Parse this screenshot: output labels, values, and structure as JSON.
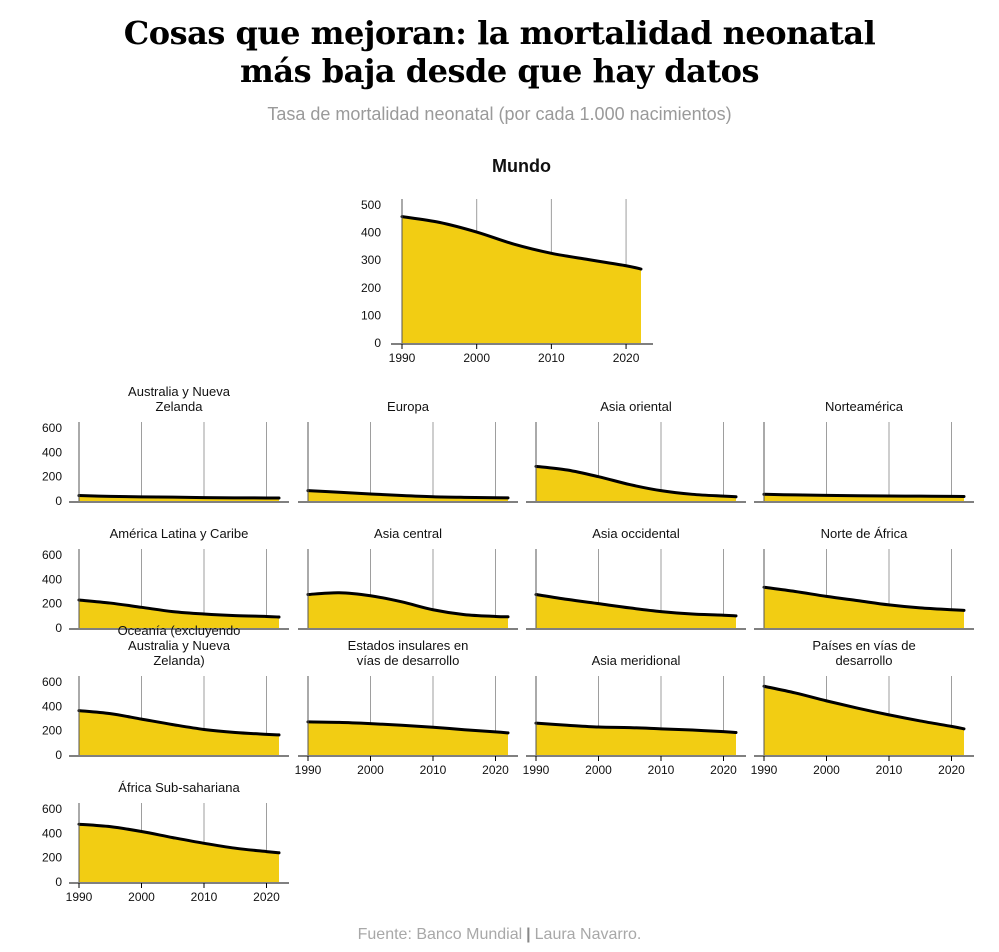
{
  "title_line1": "Cosas que mejoran: la mortalidad neonatal",
  "title_line2": "más baja desde que hay datos",
  "subtitle": "Tasa de mortalidad neonatal (por cada 1.000 nacimientos)",
  "footer": {
    "source": "Fuente: Banco Mundial",
    "author": "Laura Navarro."
  },
  "colors": {
    "fill": "#F2CD13",
    "line": "#000000",
    "grid": "#9e9e9e"
  },
  "chart_data": [
    {
      "type": "area",
      "title": "Mundo",
      "ylim": [
        0,
        500
      ],
      "yticks": [
        "0",
        "100",
        "200",
        "300",
        "400",
        "500"
      ],
      "xticks": [
        "1990",
        "2000",
        "2010",
        "2020"
      ],
      "x": [
        1990,
        1995,
        2000,
        2005,
        2010,
        2015,
        2020,
        2022
      ],
      "values": [
        458,
        437,
        402,
        358,
        325,
        302,
        280,
        268
      ]
    },
    {
      "type": "area",
      "title": "Australia y Nueva Zelanda",
      "ylim": [
        0,
        600
      ],
      "yticks": [
        "0",
        "200",
        "400",
        "600"
      ],
      "xticks": [],
      "x": [
        1990,
        1995,
        2000,
        2005,
        2010,
        2015,
        2020,
        2022
      ],
      "values": [
        45,
        38,
        34,
        32,
        28,
        26,
        25,
        25
      ]
    },
    {
      "type": "area",
      "title": "Europa",
      "ylim": [
        0,
        600
      ],
      "yticks": [],
      "xticks": [],
      "x": [
        1990,
        1995,
        2000,
        2005,
        2010,
        2015,
        2020,
        2022
      ],
      "values": [
        85,
        72,
        58,
        45,
        35,
        30,
        27,
        26
      ]
    },
    {
      "type": "area",
      "title": "Asia oriental",
      "ylim": [
        0,
        600
      ],
      "yticks": [],
      "xticks": [],
      "x": [
        1990,
        1995,
        2000,
        2005,
        2010,
        2015,
        2020,
        2022
      ],
      "values": [
        285,
        255,
        200,
        135,
        85,
        55,
        40,
        35
      ]
    },
    {
      "type": "area",
      "title": "Norteamérica",
      "ylim": [
        0,
        600
      ],
      "yticks": [],
      "xticks": [],
      "x": [
        1990,
        1995,
        2000,
        2005,
        2010,
        2015,
        2020,
        2022
      ],
      "values": [
        55,
        50,
        46,
        43,
        41,
        40,
        38,
        37
      ]
    },
    {
      "type": "area",
      "title": "América Latina y Caribe",
      "ylim": [
        0,
        600
      ],
      "yticks": [
        "0",
        "200",
        "400",
        "600"
      ],
      "xticks": [],
      "x": [
        1990,
        1995,
        2000,
        2005,
        2010,
        2015,
        2020,
        2022
      ],
      "values": [
        230,
        205,
        170,
        135,
        115,
        102,
        95,
        90
      ]
    },
    {
      "type": "area",
      "title": "Asia central",
      "ylim": [
        0,
        600
      ],
      "yticks": [],
      "xticks": [],
      "x": [
        1990,
        1995,
        2000,
        2005,
        2010,
        2015,
        2020,
        2022
      ],
      "values": [
        275,
        290,
        265,
        215,
        150,
        110,
        95,
        92
      ]
    },
    {
      "type": "area",
      "title": "Asia occidental",
      "ylim": [
        0,
        600
      ],
      "yticks": [],
      "xticks": [],
      "x": [
        1990,
        1995,
        2000,
        2005,
        2010,
        2015,
        2020,
        2022
      ],
      "values": [
        275,
        235,
        200,
        165,
        135,
        115,
        105,
        100
      ]
    },
    {
      "type": "area",
      "title": "Norte de África",
      "ylim": [
        0,
        600
      ],
      "yticks": [],
      "xticks": [],
      "x": [
        1990,
        1995,
        2000,
        2005,
        2010,
        2015,
        2020,
        2022
      ],
      "values": [
        335,
        300,
        260,
        225,
        190,
        165,
        150,
        145
      ]
    },
    {
      "type": "area",
      "title": "Oceanía (excluyendo Australia y Nueva Zelanda)",
      "ylim": [
        0,
        600
      ],
      "yticks": [
        "0",
        "200",
        "400",
        "600"
      ],
      "xticks": [],
      "x": [
        1990,
        1995,
        2000,
        2005,
        2010,
        2015,
        2020,
        2022
      ],
      "values": [
        365,
        340,
        295,
        250,
        210,
        185,
        170,
        165
      ]
    },
    {
      "type": "area",
      "title": "Estados insulares en vías de desarrollo",
      "ylim": [
        0,
        600
      ],
      "yticks": [],
      "xticks": [
        "1990",
        "2000",
        "2010",
        "2020"
      ],
      "x": [
        1990,
        1995,
        2000,
        2005,
        2010,
        2015,
        2020,
        2022
      ],
      "values": [
        272,
        268,
        258,
        245,
        228,
        208,
        190,
        182
      ]
    },
    {
      "type": "area",
      "title": "Asia meridional",
      "ylim": [
        0,
        600
      ],
      "yticks": [],
      "xticks": [
        "1990",
        "2000",
        "2010",
        "2020"
      ],
      "x": [
        1990,
        1995,
        2000,
        2005,
        2010,
        2015,
        2020,
        2022
      ],
      "values": [
        262,
        245,
        230,
        225,
        215,
        205,
        192,
        185
      ]
    },
    {
      "type": "area",
      "title": "Países en vías de desarrollo",
      "ylim": [
        0,
        600
      ],
      "yticks": [],
      "xticks": [
        "1990",
        "2000",
        "2010",
        "2020"
      ],
      "x": [
        1990,
        1995,
        2000,
        2005,
        2010,
        2015,
        2020,
        2022
      ],
      "values": [
        565,
        510,
        445,
        385,
        330,
        280,
        235,
        215
      ]
    },
    {
      "type": "area",
      "title": "África Sub-sahariana",
      "ylim": [
        0,
        600
      ],
      "yticks": [
        "0",
        "200",
        "400",
        "600"
      ],
      "xticks": [
        "1990",
        "2000",
        "2010",
        "2020"
      ],
      "x": [
        1990,
        1995,
        2000,
        2005,
        2010,
        2015,
        2020,
        2022
      ],
      "values": [
        475,
        455,
        415,
        365,
        318,
        278,
        250,
        240
      ]
    }
  ]
}
